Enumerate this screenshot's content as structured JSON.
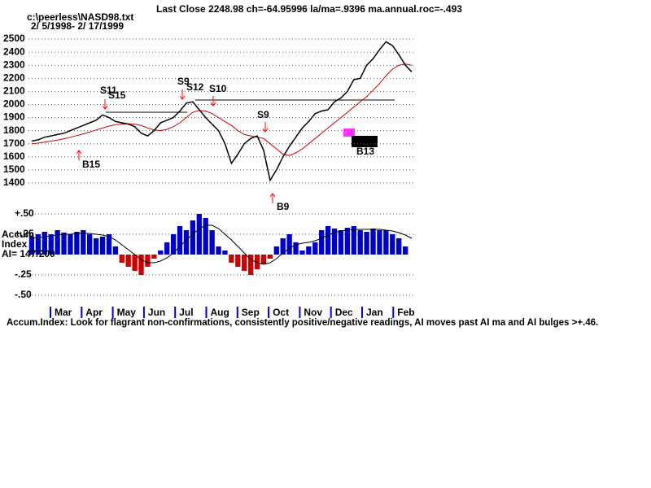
{
  "chart_data": {
    "type": "stock",
    "title": "Last Close 2248.98 ch=-64.95996  la/ma=.9396 ma.annual.roc=-.493",
    "file": "c:\\peerless\\NASD98.txt",
    "date_range": "2/ 5/1998- 2/ 17/1999",
    "months": [
      "Mar",
      "Apr",
      "May",
      "Jun",
      "Jul",
      "Aug",
      "Sep",
      "Oct",
      "Nov",
      "Dec",
      "Jan",
      "Feb"
    ],
    "price": {
      "color": "#000000",
      "values": [
        1720,
        1730,
        1750,
        1760,
        1770,
        1780,
        1800,
        1820,
        1840,
        1860,
        1880,
        1920,
        1900,
        1870,
        1860,
        1850,
        1830,
        1780,
        1760,
        1800,
        1860,
        1880,
        1900,
        1950,
        2010,
        2020,
        1960,
        1900,
        1850,
        1800,
        1700,
        1550,
        1620,
        1700,
        1740,
        1760,
        1650,
        1420,
        1500,
        1600,
        1680,
        1750,
        1820,
        1870,
        1930,
        1950,
        1960,
        2020,
        2050,
        2100,
        2190,
        2200,
        2300,
        2350,
        2420,
        2480,
        2450,
        2380,
        2300,
        2250
      ]
    },
    "price_ma": {
      "color": "#cc0000",
      "values": [
        1700,
        1705,
        1712,
        1720,
        1728,
        1738,
        1750,
        1762,
        1775,
        1790,
        1805,
        1820,
        1835,
        1845,
        1850,
        1852,
        1850,
        1840,
        1820,
        1805,
        1800,
        1810,
        1830,
        1860,
        1900,
        1940,
        1955,
        1950,
        1930,
        1900,
        1870,
        1840,
        1800,
        1770,
        1760,
        1750,
        1740,
        1700,
        1660,
        1620,
        1610,
        1630,
        1660,
        1700,
        1740,
        1780,
        1820,
        1860,
        1900,
        1940,
        1980,
        2020,
        2060,
        2110,
        2160,
        2220,
        2270,
        2300,
        2310,
        2300
      ]
    },
    "ylim": [
      1350,
      2550
    ],
    "yticks": [
      1400,
      1500,
      1600,
      1700,
      1800,
      1900,
      2000,
      2100,
      2200,
      2300,
      2400,
      2500
    ],
    "grid": true,
    "annotations": [
      "S11",
      "S15",
      "S9",
      "S12",
      "S10",
      "S9",
      "B15",
      "B9",
      "B13"
    ],
    "accum": {
      "labels": [
        "Accum",
        "Index",
        "AI= 147/200"
      ],
      "pos_color": "#0000cc",
      "neg_color": "#cc0000",
      "ma_color": "#000000",
      "values": [
        0.22,
        0.25,
        0.28,
        0.25,
        0.3,
        0.27,
        0.25,
        0.28,
        0.3,
        0.25,
        0.2,
        0.22,
        0.25,
        0.1,
        -0.1,
        -0.15,
        -0.2,
        -0.25,
        -0.15,
        -0.05,
        0.05,
        0.15,
        0.25,
        0.35,
        0.3,
        0.42,
        0.5,
        0.45,
        0.3,
        0.1,
        0.05,
        -0.1,
        -0.15,
        -0.2,
        -0.25,
        -0.18,
        -0.12,
        -0.05,
        0.1,
        0.2,
        0.25,
        0.15,
        0.05,
        0.1,
        0.15,
        0.3,
        0.35,
        0.32,
        0.3,
        0.33,
        0.35,
        0.3,
        0.28,
        0.32,
        0.3,
        0.3,
        0.25,
        0.2,
        0.1,
        0.0
      ],
      "ma": [
        0.2,
        0.21,
        0.22,
        0.23,
        0.24,
        0.25,
        0.25,
        0.26,
        0.26,
        0.26,
        0.25,
        0.24,
        0.22,
        0.18,
        0.12,
        0.06,
        0.0,
        -0.06,
        -0.1,
        -0.1,
        -0.08,
        -0.04,
        0.02,
        0.1,
        0.18,
        0.25,
        0.32,
        0.36,
        0.36,
        0.32,
        0.25,
        0.18,
        0.1,
        0.02,
        -0.06,
        -0.1,
        -0.12,
        -0.1,
        -0.05,
        0.02,
        0.08,
        0.12,
        0.14,
        0.15,
        0.17,
        0.2,
        0.24,
        0.27,
        0.29,
        0.3,
        0.31,
        0.31,
        0.31,
        0.31,
        0.31,
        0.3,
        0.29,
        0.27,
        0.24,
        0.2
      ],
      "ylim": [
        -0.5,
        0.5
      ],
      "yticks": [
        {
          "value": 0.5,
          "label": "+.50"
        },
        {
          "value": 0.25,
          "label": "+.25"
        },
        {
          "value": -0.25,
          "label": "-.25"
        },
        {
          "value": -0.5,
          "label": "-.50"
        }
      ]
    },
    "footer": "Accum.Index: Look for flagrant non-confirmations, consistently positive/negative readings, AI moves past AI ma and AI bulges >+.46."
  }
}
